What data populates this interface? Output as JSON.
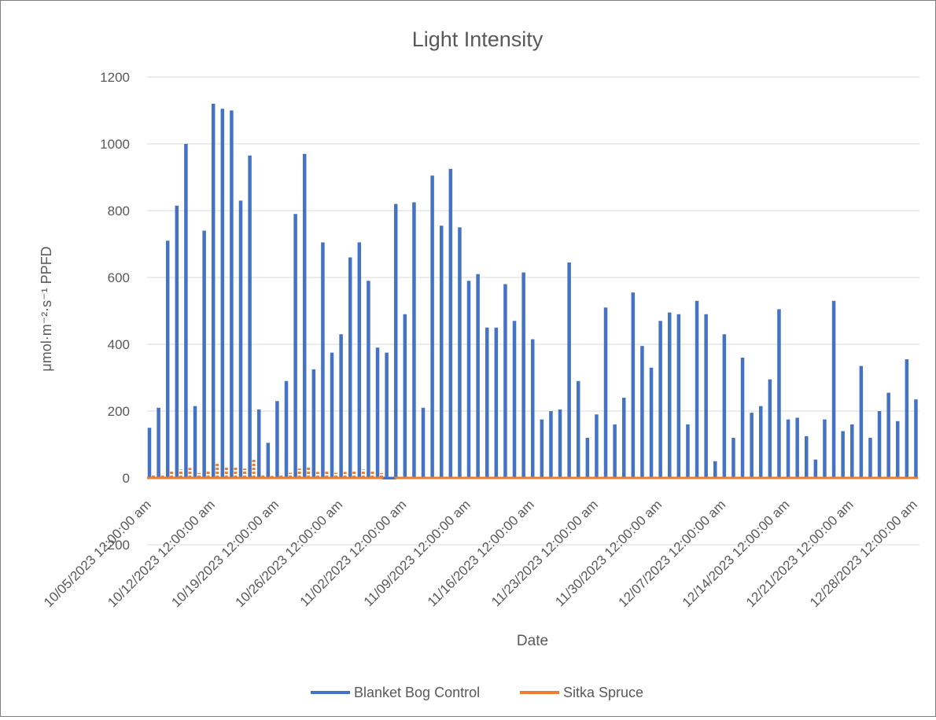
{
  "chart_data": {
    "type": "line",
    "title": "Light Intensity",
    "xlabel": "Date",
    "ylabel": "μmol·m⁻²·s⁻¹ PPFD",
    "ylim": [
      -200,
      1200
    ],
    "yticks": [
      -200,
      0,
      200,
      400,
      600,
      800,
      1000,
      1200
    ],
    "xlim": [
      "10/05/2023",
      "12/31/2023"
    ],
    "xtick_labels": [
      "10/05/2023 12:00:00 am",
      "10/12/2023 12:00:00 am",
      "10/19/2023 12:00:00 am",
      "10/26/2023 12:00:00 am",
      "11/02/2023 12:00:00 am",
      "11/09/2023 12:00:00 am",
      "11/16/2023 12:00:00 am",
      "11/23/2023 12:00:00 am",
      "11/30/2023 12:00:00 am",
      "12/07/2023 12:00:00 am",
      "12/14/2023 12:00:00 am",
      "12/21/2023 12:00:00 am",
      "12/28/2023 12:00:00 am"
    ],
    "grid": true,
    "legend_position": "bottom",
    "colors": {
      "Blanket Bog Control": "#4472c4",
      "Sitka Spruce": "#ed7d31"
    },
    "series": [
      {
        "name": "Blanket Bog Control",
        "color": "#4472c4",
        "values": [
          150,
          210,
          710,
          815,
          1000,
          215,
          740,
          1120,
          1105,
          1100,
          830,
          965,
          205,
          105,
          230,
          290,
          790,
          970,
          325,
          705,
          375,
          430,
          660,
          705,
          590,
          390,
          375,
          820,
          490,
          825,
          210,
          905,
          755,
          925,
          750,
          590,
          610,
          450,
          450,
          580,
          470,
          615,
          415,
          175,
          200,
          205,
          645,
          290,
          120,
          190,
          510,
          160,
          240,
          555,
          395,
          330,
          470,
          495,
          490,
          160,
          530,
          490,
          50,
          430,
          120,
          360,
          195,
          215,
          295,
          505,
          175,
          180,
          125,
          55,
          175,
          530,
          140,
          160,
          335,
          120,
          200,
          255,
          170,
          355,
          235
        ]
      },
      {
        "name": "Sitka Spruce",
        "color": "#ed7d31",
        "values": [
          8,
          12,
          20,
          25,
          30,
          14,
          20,
          42,
          35,
          32,
          28,
          55,
          10,
          6,
          12,
          15,
          28,
          35,
          18,
          22,
          15,
          18,
          22,
          25,
          20,
          14,
          0,
          0,
          0,
          0,
          0,
          0,
          0,
          0,
          0,
          0,
          0,
          0,
          0,
          0,
          0,
          0,
          0,
          0,
          0,
          0,
          0,
          0,
          0,
          0,
          0,
          0,
          0,
          0,
          0,
          0,
          0,
          0,
          0,
          0,
          0,
          0,
          0,
          0,
          0,
          0,
          0,
          0,
          0,
          0,
          0,
          0,
          0,
          0,
          0,
          0,
          0,
          0,
          0,
          0,
          0,
          0,
          0,
          0,
          0
        ]
      }
    ]
  }
}
